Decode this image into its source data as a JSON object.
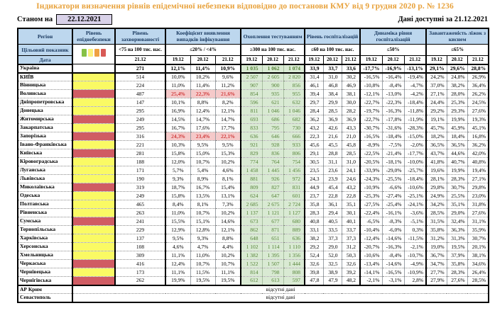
{
  "title": "Індикатори визначення рівнів епідемічної небезпеки відповідно до постанови КМУ від 9 грудня 2020 р. № 1236",
  "as_of": {
    "label": "Станом на",
    "date": "22.12.2021"
  },
  "available_label": "Дані доступні за 21.12.2021",
  "header": {
    "region": "Регіон",
    "level": "Рівень епіднебезпеки",
    "incidence": "Рівень захворюваності",
    "detection": "Коефіцієнт виявлення випадків інфікування",
    "testing": "Охоплення тестуванням",
    "hospitalization": "Рівень госпіталізацій",
    "dynamics": "Динаміка рівня госпіталізацій",
    "beds": "Завантаженість ліжок з киснем"
  },
  "target_label": "Цільовий показник",
  "date_label": "Дата",
  "targets": {
    "incidence": "<75 на 100 тис. нас.",
    "detection": "≤20% / <4%",
    "testing": "≥300 на 100 тис. нас.",
    "hospitalization": "≤60 на 100 тис. нас.",
    "dynamics": "≤50%",
    "beds": "≤65%"
  },
  "dates": {
    "incidence": [
      "21.12"
    ],
    "triple": [
      "19.12",
      "20.12",
      "21.12"
    ]
  },
  "legend_colors": [
    "#86C146",
    "#FBF07E",
    "#EFA143",
    "#D85A56"
  ],
  "colors": {
    "title": "#E8A23C",
    "header_bg": "#BDD7EE",
    "header_text": "#17365D",
    "date_box_bg": "#D9D2E9",
    "level_yellow": "#FAFA64",
    "level_red": "#D05C63",
    "testing_bg": "#D9EAD3",
    "testing_text": "#538135",
    "alert_bg": "#F5C9C9",
    "alert_text": "#C00000"
  },
  "no_data_text": "відсутні дані",
  "rows": [
    {
      "region": "Україна",
      "level": "none",
      "bold": true,
      "thick_bottom": true,
      "incidence": "271",
      "detection": [
        "12,1%",
        "11,4%",
        "10,9%"
      ],
      "detection_alert": false,
      "testing": [
        "1 035",
        "1 062",
        "1 074"
      ],
      "hospitalization": [
        "33,9",
        "33,7",
        "33,6"
      ],
      "dynamics": [
        "-17,7%",
        "-16,9%",
        "-13,1%"
      ],
      "beds": [
        "29,1%",
        "29,6%",
        "28,8%"
      ]
    },
    {
      "region": "КИЇВ",
      "level": "yellow",
      "incidence": "514",
      "detection": [
        "10,0%",
        "10,2%",
        "9,6%"
      ],
      "detection_alert": false,
      "testing": [
        "2 507",
        "2 605",
        "2 820"
      ],
      "hospitalization": [
        "31,4",
        "31,0",
        "30,2"
      ],
      "dynamics": [
        "-16,5%",
        "-16,4%",
        "-19,4%"
      ],
      "beds": [
        "24,2%",
        "24,8%",
        "26,9%"
      ]
    },
    {
      "region": "Вінницька",
      "level": "yellow",
      "incidence": "224",
      "detection": [
        "11,0%",
        "11,4%",
        "11,2%"
      ],
      "detection_alert": false,
      "testing": [
        "907",
        "900",
        "856"
      ],
      "hospitalization": [
        "46,1",
        "46,8",
        "46,9"
      ],
      "dynamics": [
        "-10,8%",
        "-8,4%",
        "-4,7%"
      ],
      "beds": [
        "37,0%",
        "38,2%",
        "36,4%"
      ]
    },
    {
      "region": "Волинська",
      "level": "red",
      "incidence": "487",
      "detection": [
        "25,4%",
        "22,3%",
        "21,6%"
      ],
      "detection_alert": true,
      "testing": [
        "854",
        "935",
        "955"
      ],
      "hospitalization": [
        "39,4",
        "38,4",
        "38,1"
      ],
      "dynamics": [
        "-12,1%",
        "-13,0%",
        "-4,2%"
      ],
      "beds": [
        "27,1%",
        "28,0%",
        "26,2%"
      ]
    },
    {
      "region": "Дніпропетровська",
      "level": "yellow",
      "incidence": "147",
      "detection": [
        "10,1%",
        "8,8%",
        "8,2%"
      ],
      "detection_alert": false,
      "testing": [
        "596",
        "621",
        "632"
      ],
      "hospitalization": [
        "29,7",
        "29,9",
        "30,0"
      ],
      "dynamics": [
        "-22,7%",
        "-22,3%",
        "-18,4%"
      ],
      "beds": [
        "24,4%",
        "25,3%",
        "24,5%"
      ]
    },
    {
      "region": "Донецька",
      "level": "yellow",
      "incidence": "295",
      "detection": [
        "16,9%",
        "12,4%",
        "12,1%"
      ],
      "detection_alert": false,
      "testing": [
        "811",
        "1 046",
        "1 046"
      ],
      "hospitalization": [
        "28,4",
        "28,5",
        "28,2"
      ],
      "dynamics": [
        "-19,7%",
        "-16,3%",
        "-11,8%"
      ],
      "beds": [
        "29,2%",
        "29,3%",
        "27,6%"
      ]
    },
    {
      "region": "Житомирська",
      "level": "red",
      "incidence": "249",
      "detection": [
        "14,5%",
        "14,7%",
        "14,7%"
      ],
      "detection_alert": false,
      "testing": [
        "693",
        "686",
        "682"
      ],
      "hospitalization": [
        "36,2",
        "36,9",
        "36,9"
      ],
      "dynamics": [
        "-22,7%",
        "-17,8%",
        "-11,9%"
      ],
      "beds": [
        "19,1%",
        "19,9%",
        "19,3%"
      ]
    },
    {
      "region": "Закарпатська",
      "level": "yellow",
      "incidence": "295",
      "detection": [
        "16,7%",
        "17,6%",
        "17,7%"
      ],
      "detection_alert": false,
      "testing": [
        "833",
        "795",
        "730"
      ],
      "hospitalization": [
        "43,2",
        "42,6",
        "43,3"
      ],
      "dynamics": [
        "-30,7%",
        "-31,6%",
        "-28,3%"
      ],
      "beds": [
        "45,7%",
        "45,9%",
        "45,1%"
      ]
    },
    {
      "region": "Запорізька",
      "level": "red",
      "incidence": "316",
      "detection": [
        "24,3%",
        "23,4%",
        "22,1%"
      ],
      "detection_alert": true,
      "testing": [
        "636",
        "646",
        "666"
      ],
      "hospitalization": [
        "22,3",
        "21,6",
        "21,0"
      ],
      "dynamics": [
        "-16,5%",
        "-18,4%",
        "-15,0%"
      ],
      "beds": [
        "18,2%",
        "18,4%",
        "16,8%"
      ]
    },
    {
      "region": "Івано-Франківська",
      "level": "yellow",
      "incidence": "221",
      "detection": [
        "10,3%",
        "9,5%",
        "9,5%"
      ],
      "detection_alert": false,
      "testing": [
        "921",
        "928",
        "933"
      ],
      "hospitalization": [
        "45,6",
        "45,5",
        "45,8"
      ],
      "dynamics": [
        "-8,9%",
        "-7,5%",
        "-2,0%"
      ],
      "beds": [
        "36,5%",
        "36,5%",
        "36,2%"
      ]
    },
    {
      "region": "Київська",
      "level": "red",
      "incidence": "281",
      "detection": [
        "15,8%",
        "15,0%",
        "15,3%"
      ],
      "detection_alert": false,
      "testing": [
        "829",
        "836",
        "806"
      ],
      "hospitalization": [
        "29,1",
        "28,8",
        "28,5"
      ],
      "dynamics": [
        "-22,5%",
        "-21,4%",
        "-17,7%"
      ],
      "beds": [
        "43,7%",
        "44,6%",
        "42,0%"
      ]
    },
    {
      "region": "Кіровоградська",
      "level": "yellow",
      "incidence": "188",
      "detection": [
        "12,0%",
        "10,7%",
        "10,2%"
      ],
      "detection_alert": false,
      "testing": [
        "774",
        "764",
        "754"
      ],
      "hospitalization": [
        "30,5",
        "31,1",
        "31,0"
      ],
      "dynamics": [
        "-20,5%",
        "-18,1%",
        "-10,0%"
      ],
      "beds": [
        "41,8%",
        "40,7%",
        "40,8%"
      ]
    },
    {
      "region": "Луганська",
      "level": "yellow",
      "incidence": "171",
      "detection": [
        "5,7%",
        "5,4%",
        "4,6%"
      ],
      "detection_alert": false,
      "testing": [
        "1 458",
        "1 445",
        "1 456"
      ],
      "hospitalization": [
        "23,5",
        "23,6",
        "24,1"
      ],
      "dynamics": [
        "-33,9%",
        "-29,0%",
        "-25,7%"
      ],
      "beds": [
        "19,6%",
        "19,9%",
        "19,4%"
      ]
    },
    {
      "region": "Львівська",
      "level": "yellow",
      "incidence": "190",
      "detection": [
        "9,3%",
        "8,9%",
        "8,1%"
      ],
      "detection_alert": false,
      "testing": [
        "881",
        "926",
        "972"
      ],
      "hospitalization": [
        "24,3",
        "23,9",
        "24,6"
      ],
      "dynamics": [
        "-24,3%",
        "-25,5%",
        "-18,4%"
      ],
      "beds": [
        "28,1%",
        "28,3%",
        "27,1%"
      ]
    },
    {
      "region": "Миколаївська",
      "level": "red",
      "incidence": "319",
      "detection": [
        "18,7%",
        "16,7%",
        "15,4%"
      ],
      "detection_alert": false,
      "testing": [
        "809",
        "827",
        "831"
      ],
      "hospitalization": [
        "44,9",
        "45,4",
        "43,2"
      ],
      "dynamics": [
        "-10,9%",
        "-6,6%",
        "-10,6%"
      ],
      "beds": [
        "29,8%",
        "30,7%",
        "29,8%"
      ]
    },
    {
      "region": "Одеська",
      "level": "yellow",
      "incidence": "249",
      "detection": [
        "15,8%",
        "13,5%",
        "13,1%"
      ],
      "detection_alert": false,
      "testing": [
        "624",
        "647",
        "601"
      ],
      "hospitalization": [
        "23,7",
        "22,8",
        "22,8"
      ],
      "dynamics": [
        "-25,3%",
        "-27,4%",
        "-25,1%"
      ],
      "beds": [
        "24,9%",
        "25,5%",
        "23,0%"
      ]
    },
    {
      "region": "Полтавська",
      "level": "yellow",
      "incidence": "465",
      "detection": [
        "8,4%",
        "8,1%",
        "7,3%"
      ],
      "detection_alert": false,
      "testing": [
        "2 685",
        "2 675",
        "2 724"
      ],
      "hospitalization": [
        "35,8",
        "36,1",
        "35,1"
      ],
      "dynamics": [
        "-27,5%",
        "-25,4%",
        "-24,1%"
      ],
      "beds": [
        "34,2%",
        "35,1%",
        "31,8%"
      ]
    },
    {
      "region": "Рівненська",
      "level": "yellow",
      "incidence": "263",
      "detection": [
        "11,0%",
        "10,7%",
        "10,2%"
      ],
      "detection_alert": false,
      "testing": [
        "1 137",
        "1 121",
        "1 127"
      ],
      "hospitalization": [
        "28,3",
        "29,4",
        "30,1"
      ],
      "dynamics": [
        "-22,4%",
        "-16,1%",
        "-3,6%"
      ],
      "beds": [
        "28,5%",
        "29,0%",
        "27,6%"
      ]
    },
    {
      "region": "Сумська",
      "level": "red",
      "incidence": "241",
      "detection": [
        "15,5%",
        "15,1%",
        "14,6%"
      ],
      "detection_alert": false,
      "testing": [
        "673",
        "677",
        "680"
      ],
      "hospitalization": [
        "40,8",
        "40,5",
        "40,1"
      ],
      "dynamics": [
        "-6,5%",
        "-8,3%",
        "-5,1%"
      ],
      "beds": [
        "31,5%",
        "32,4%",
        "31,1%"
      ]
    },
    {
      "region": "Тернопільська",
      "level": "yellow",
      "incidence": "229",
      "detection": [
        "12,9%",
        "12,8%",
        "12,1%"
      ],
      "detection_alert": false,
      "testing": [
        "862",
        "871",
        "889"
      ],
      "hospitalization": [
        "33,1",
        "33,5",
        "33,7"
      ],
      "dynamics": [
        "-10,4%",
        "-6,0%",
        "0,3%"
      ],
      "beds": [
        "35,8%",
        "36,3%",
        "35,9%"
      ]
    },
    {
      "region": "Харківська",
      "level": "yellow",
      "incidence": "137",
      "detection": [
        "9,5%",
        "9,3%",
        "8,8%"
      ],
      "detection_alert": false,
      "testing": [
        "648",
        "651",
        "636"
      ],
      "hospitalization": [
        "38,2",
        "37,3",
        "37,3"
      ],
      "dynamics": [
        "-12,4%",
        "-14,6%",
        "-11,5%"
      ],
      "beds": [
        "31,2%",
        "31,3%",
        "30,7%"
      ]
    },
    {
      "region": "Херсонська",
      "level": "yellow",
      "incidence": "108",
      "detection": [
        "4,6%",
        "4,7%",
        "4,4%"
      ],
      "detection_alert": false,
      "testing": [
        "1 102",
        "1 114",
        "1 110"
      ],
      "hospitalization": [
        "29,2",
        "29,0",
        "31,2"
      ],
      "dynamics": [
        "-20,7%",
        "-16,3%",
        "-2,1%"
      ],
      "beds": [
        "19,0%",
        "19,5%",
        "20,1%"
      ]
    },
    {
      "region": "Хмельницька",
      "level": "yellow",
      "incidence": "309",
      "detection": [
        "11,1%",
        "11,0%",
        "10,2%"
      ],
      "detection_alert": false,
      "testing": [
        "1 382",
        "1 395",
        "1 356"
      ],
      "hospitalization": [
        "52,4",
        "52,0",
        "50,3"
      ],
      "dynamics": [
        "-10,6%",
        "-8,4%",
        "-10,7%"
      ],
      "beds": [
        "36,7%",
        "37,9%",
        "38,1%"
      ]
    },
    {
      "region": "Черкаська",
      "level": "red",
      "incidence": "416",
      "detection": [
        "12,4%",
        "10,7%",
        "10,7%"
      ],
      "detection_alert": false,
      "testing": [
        "1 522",
        "1 507",
        "1 444"
      ],
      "hospitalization": [
        "32,6",
        "32,5",
        "32,6"
      ],
      "dynamics": [
        "-13,4%",
        "-14,6%",
        "-4,9%"
      ],
      "beds": [
        "34,7%",
        "35,8%",
        "34,6%"
      ]
    },
    {
      "region": "Чернівецька",
      "level": "yellow",
      "incidence": "173",
      "detection": [
        "11,1%",
        "11,5%",
        "11,1%"
      ],
      "detection_alert": false,
      "testing": [
        "814",
        "798",
        "808"
      ],
      "hospitalization": [
        "39,8",
        "38,9",
        "39,2"
      ],
      "dynamics": [
        "-14,1%",
        "-16,5%",
        "-10,9%"
      ],
      "beds": [
        "27,7%",
        "28,3%",
        "26,4%"
      ]
    },
    {
      "region": "Чернігівська",
      "level": "red",
      "thick_bottom": true,
      "incidence": "262",
      "detection": [
        "19,9%",
        "19,5%",
        "19,5%"
      ],
      "detection_alert": false,
      "testing": [
        "612",
        "613",
        "597"
      ],
      "hospitalization": [
        "47,8",
        "47,9",
        "48,2"
      ],
      "dynamics": [
        "-2,1%",
        "-3,1%",
        "2,8%"
      ],
      "beds": [
        "27,9%",
        "27,6%",
        "28,5%"
      ]
    },
    {
      "region": "АР Крим",
      "no_data": true
    },
    {
      "region": "Севастополь",
      "no_data": true
    }
  ]
}
